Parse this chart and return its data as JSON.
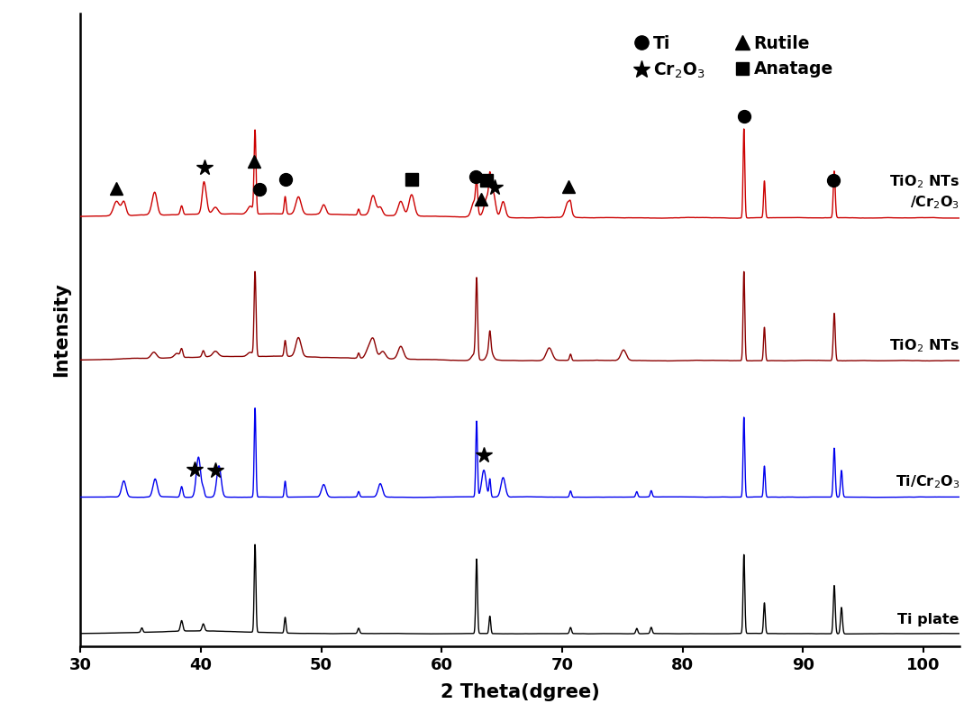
{
  "xlabel": "2 Theta(dgree)",
  "ylabel": "Intensity",
  "xlim": [
    30,
    103
  ],
  "ylim": [
    -0.1,
    5.0
  ],
  "x_ticks": [
    30,
    40,
    50,
    60,
    70,
    80,
    90,
    100
  ],
  "colors": {
    "ti_plate": "#000000",
    "ti_cr2o3": "#0000ee",
    "tio2_nts": "#8b0000",
    "tio2_nts_cr2o3": "#cc0000"
  },
  "scale": 0.72,
  "offsets": [
    0.0,
    1.1,
    2.2,
    3.35
  ],
  "label_texts": [
    "Ti plate",
    "Ti/Cr$_2$O$_3$",
    "TiO$_2$ NTs",
    "TiO$_2$ NTs\n/Cr$_2$O$_3$"
  ],
  "label_va": [
    "bottom",
    "bottom",
    "bottom",
    "bottom"
  ],
  "legend_order": [
    "o",
    "^",
    "*",
    "s"
  ],
  "legend_labels": [
    "Ti",
    "Rutile",
    "Cr$_2$O$_3$",
    "Anatage"
  ]
}
